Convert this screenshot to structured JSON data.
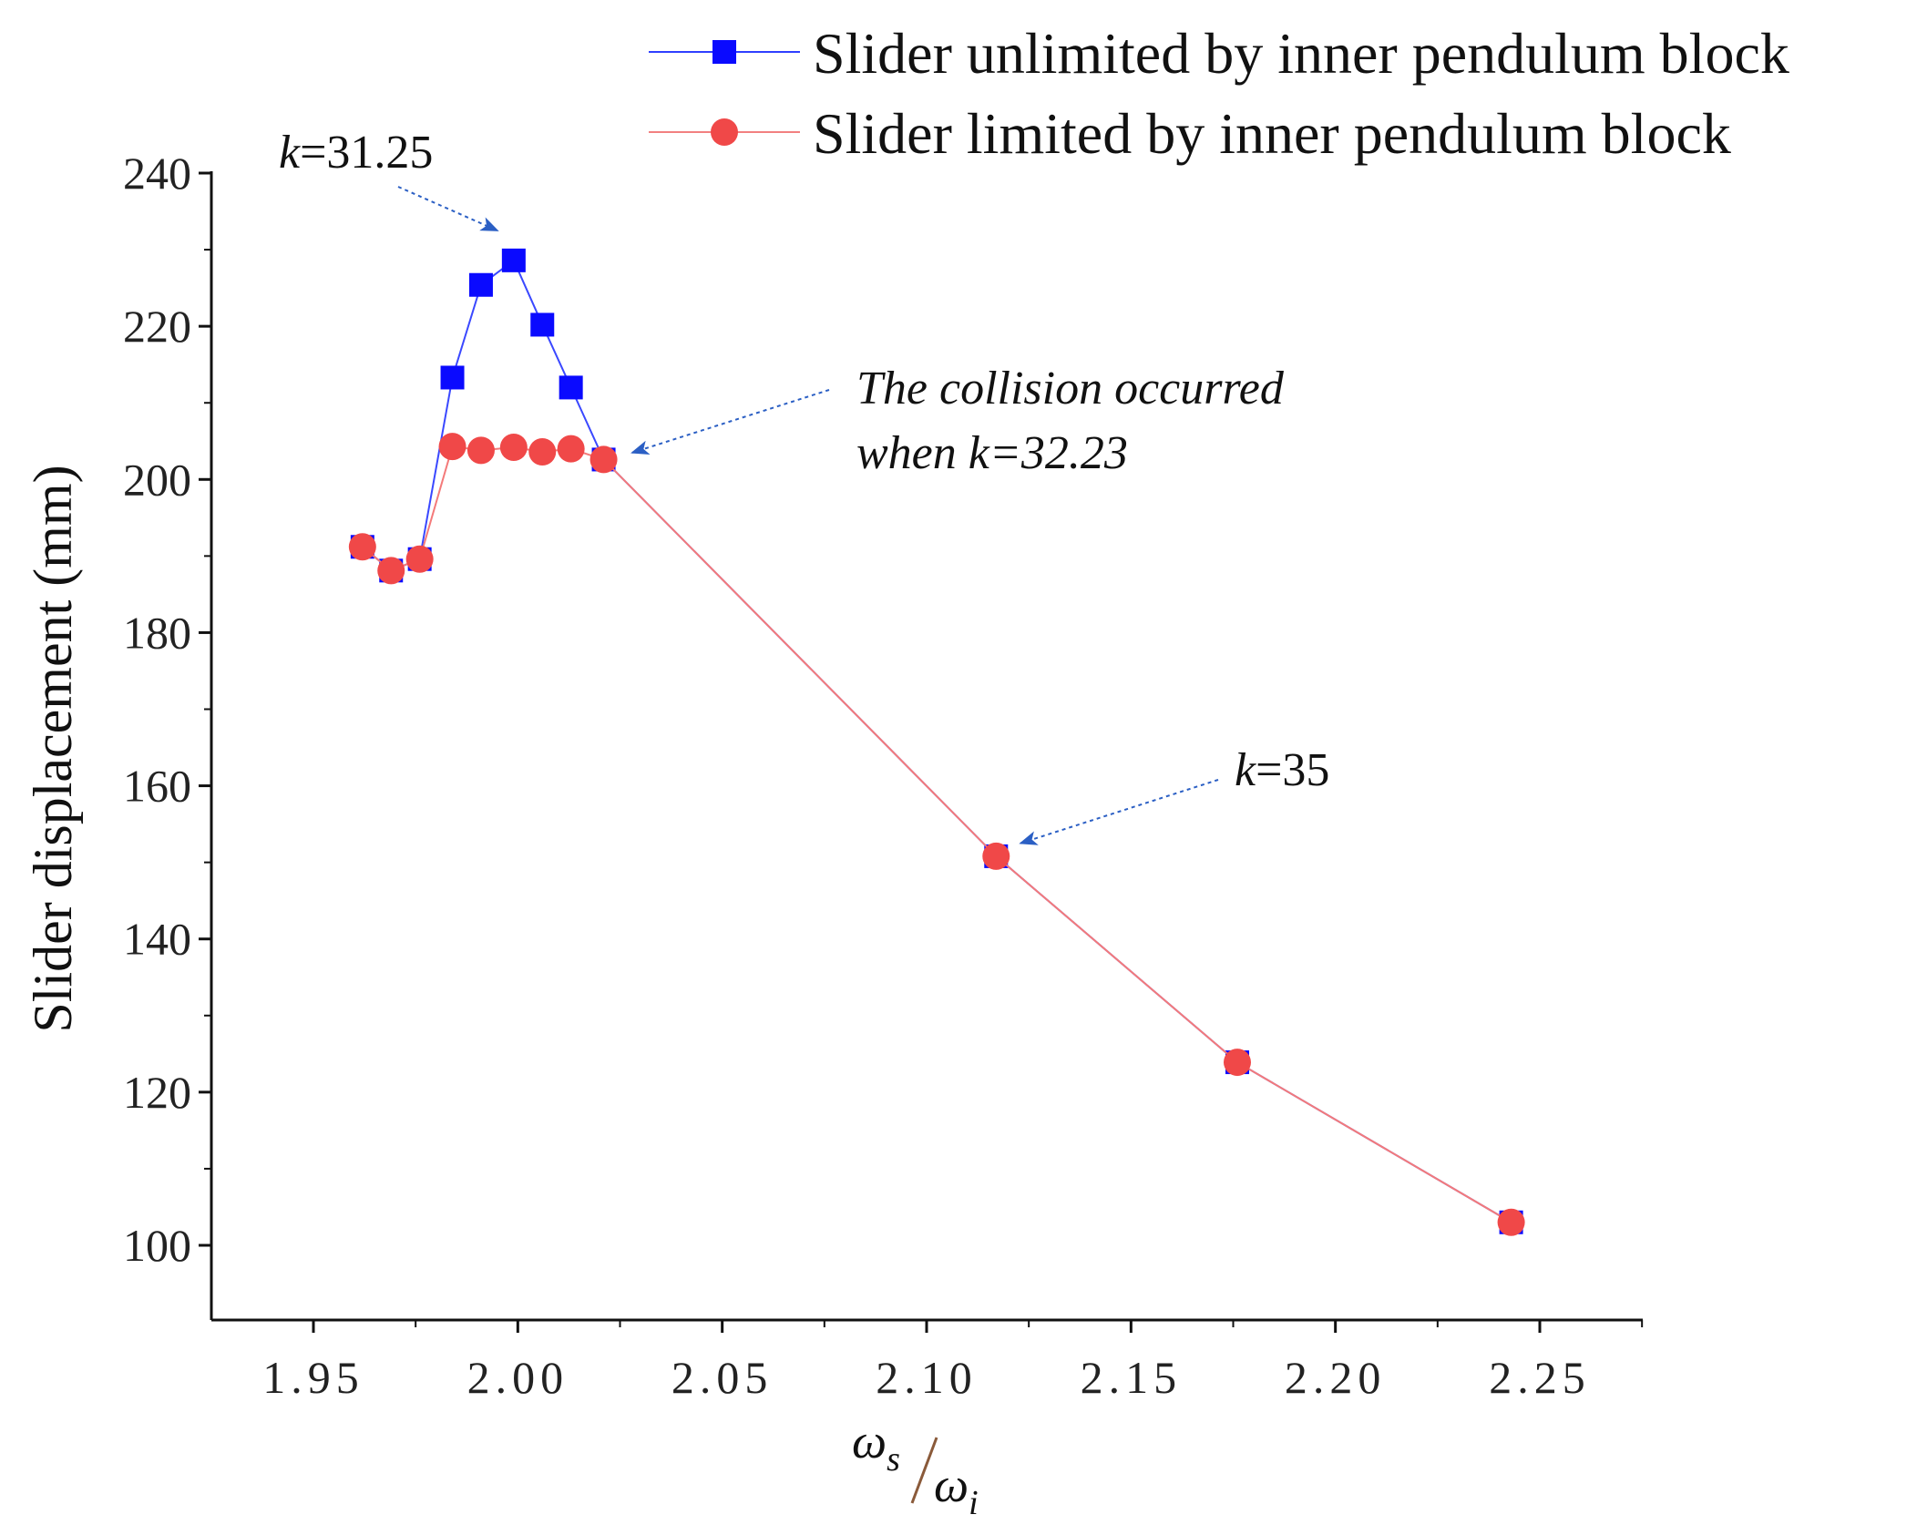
{
  "chart_data": {
    "type": "line",
    "title": "",
    "xlabel": "ωs/ωi",
    "xlabel_parts": {
      "num": "ω",
      "num_sub": "s",
      "den": "ω",
      "den_sub": "i"
    },
    "ylabel": "Slider displacement (mm)",
    "xlim": [
      1.925,
      2.275
    ],
    "ylim": [
      90,
      240
    ],
    "xticks": [
      1.95,
      2.0,
      2.05,
      2.1,
      2.15,
      2.2,
      2.25
    ],
    "xtick_labels": [
      "1.95",
      "2.00",
      "2.05",
      "2.10",
      "2.15",
      "2.20",
      "2.25"
    ],
    "yticks": [
      100,
      120,
      140,
      160,
      180,
      200,
      220,
      240
    ],
    "ytick_labels": [
      "100",
      "120",
      "140",
      "160",
      "180",
      "200",
      "220",
      "240"
    ],
    "grid": false,
    "legend_position": "top-right",
    "series": [
      {
        "name": "Slider unlimited by inner pendulum block",
        "marker": "square",
        "color": "#0a0aff",
        "x": [
          1.962,
          1.969,
          1.976,
          1.984,
          1.991,
          1.999,
          2.006,
          2.013,
          2.021,
          2.117,
          2.176,
          2.243
        ],
        "y": [
          191.2,
          188.1,
          189.6,
          213.3,
          225.4,
          228.6,
          220.2,
          212.0,
          202.6,
          150.8,
          123.9,
          103.0
        ]
      },
      {
        "name": "Slider limited by inner pendulum block",
        "marker": "circle",
        "color": "#f04848",
        "x": [
          1.962,
          1.969,
          1.976,
          1.984,
          1.991,
          1.999,
          2.006,
          2.013,
          2.021,
          2.117,
          2.176,
          2.243
        ],
        "y": [
          191.2,
          188.1,
          189.6,
          204.3,
          203.8,
          204.2,
          203.6,
          204.0,
          202.6,
          150.8,
          123.9,
          103.0
        ]
      }
    ],
    "annotations": [
      {
        "id": "k-31-25",
        "italic_prefix": "k",
        "text": "=31.25",
        "target_x": 1.995,
        "target_y": 232.5
      },
      {
        "id": "collision",
        "line1": "The collision occurred",
        "line2": "when k=32.23",
        "target_x": 2.028,
        "target_y": 203.5
      },
      {
        "id": "k-35",
        "italic_prefix": "k",
        "text": "=35",
        "target_x": 2.123,
        "target_y": 152.5
      }
    ]
  }
}
